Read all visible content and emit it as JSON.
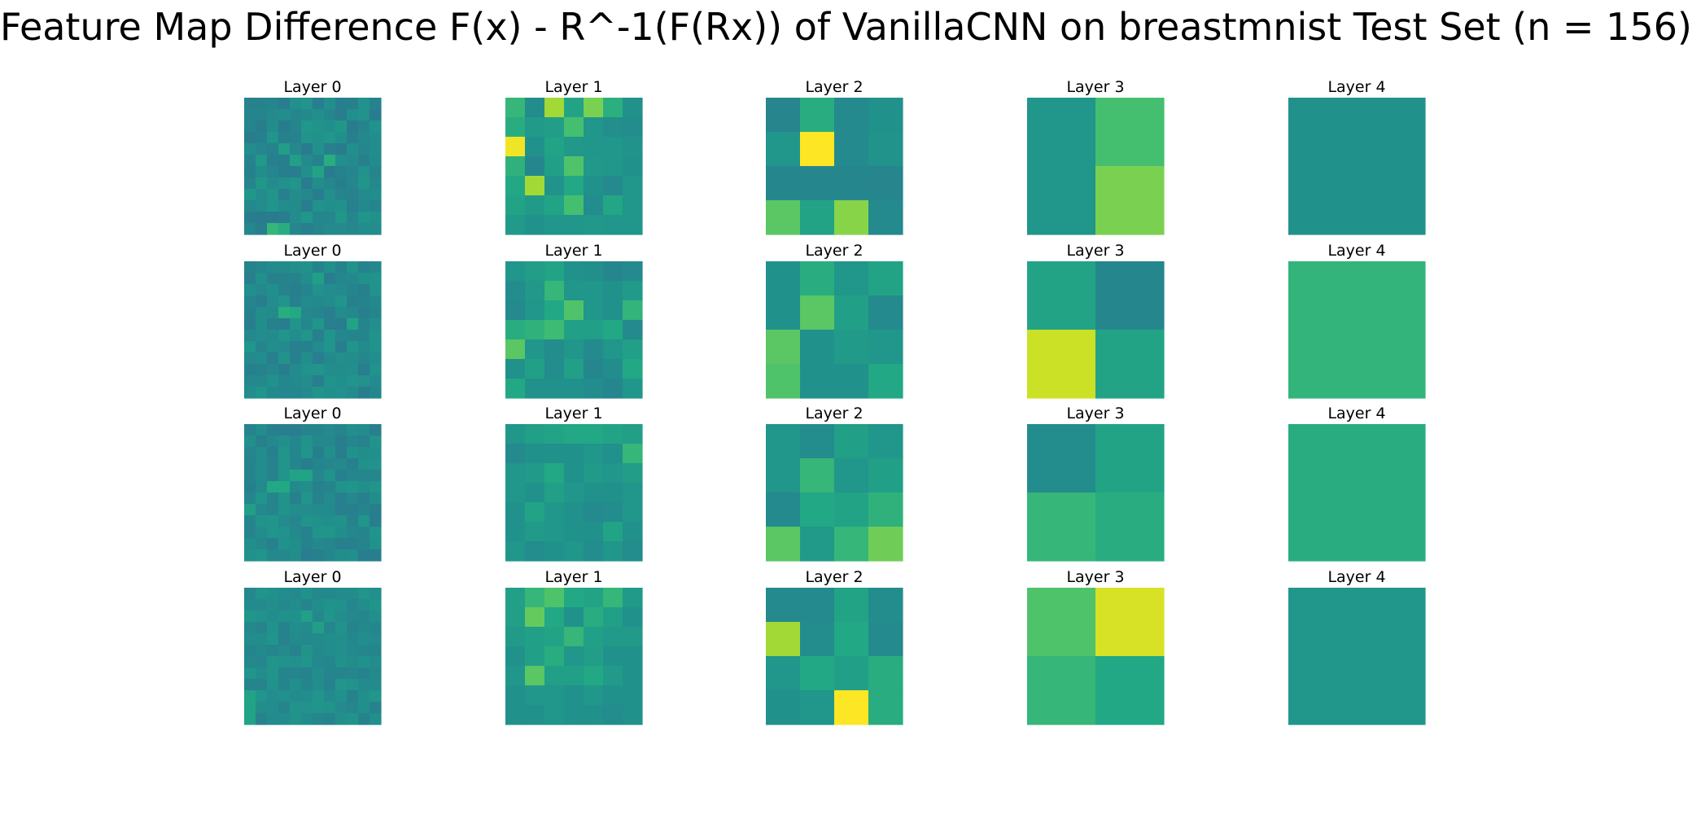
{
  "title": "Feature Map Difference F(x) - R^-1(F(Rx)) of VanillaCNN on breastmnist Test Set (n = 156)",
  "chart_data": {
    "type": "heatmap",
    "title": "Feature Map Difference F(x) - R^-1(F(Rx)) of VanillaCNN on breastmnist Test Set (n = 156)",
    "colormap": "viridis",
    "axes": "off",
    "layout": {
      "rows": 4,
      "cols": 5
    },
    "panels": [
      [
        {
          "title": "Layer 0",
          "size": 12,
          "seed": 11,
          "base": 0.47,
          "amp": 0.06,
          "hot": [
            [
              5,
              7,
              0.62
            ],
            [
              6,
              6,
              0.58
            ],
            [
              11,
              2,
              0.66
            ],
            [
              11,
              3,
              0.62
            ],
            [
              5,
              4,
              0.56
            ],
            [
              4,
              3,
              0.55
            ]
          ]
        },
        {
          "title": "Layer 1",
          "size": 7,
          "values": [
            [
              0.66,
              0.48,
              0.86,
              0.58,
              0.8,
              0.63,
              0.5
            ],
            [
              0.62,
              0.54,
              0.55,
              0.7,
              0.52,
              0.49,
              0.48
            ],
            [
              0.98,
              0.5,
              0.58,
              0.53,
              0.52,
              0.52,
              0.51
            ],
            [
              0.64,
              0.46,
              0.56,
              0.72,
              0.53,
              0.52,
              0.5
            ],
            [
              0.6,
              0.86,
              0.51,
              0.6,
              0.5,
              0.47,
              0.52
            ],
            [
              0.58,
              0.54,
              0.58,
              0.7,
              0.48,
              0.59,
              0.52
            ],
            [
              0.54,
              0.5,
              0.52,
              0.52,
              0.53,
              0.52,
              0.52
            ]
          ]
        },
        {
          "title": "Layer 2",
          "size": 4,
          "values": [
            [
              0.45,
              0.62,
              0.47,
              0.5
            ],
            [
              0.52,
              1.0,
              0.47,
              0.51
            ],
            [
              0.46,
              0.46,
              0.46,
              0.45
            ],
            [
              0.74,
              0.58,
              0.82,
              0.47
            ]
          ]
        },
        {
          "title": "Layer 3",
          "size": 2,
          "values": [
            [
              0.52,
              0.7
            ],
            [
              0.52,
              0.8
            ]
          ]
        },
        {
          "title": "Layer 4",
          "size": 1,
          "values": [
            [
              0.5
            ]
          ]
        }
      ],
      [
        {
          "title": "Layer 0",
          "size": 12,
          "seed": 23,
          "base": 0.47,
          "amp": 0.05,
          "hot": [
            [
              4,
              3,
              0.62
            ],
            [
              4,
              4,
              0.6
            ],
            [
              5,
              9,
              0.58
            ],
            [
              1,
              6,
              0.56
            ]
          ]
        },
        {
          "title": "Layer 1",
          "size": 7,
          "values": [
            [
              0.52,
              0.55,
              0.58,
              0.5,
              0.49,
              0.46,
              0.47
            ],
            [
              0.48,
              0.53,
              0.66,
              0.52,
              0.52,
              0.5,
              0.54
            ],
            [
              0.47,
              0.52,
              0.6,
              0.72,
              0.52,
              0.5,
              0.65
            ],
            [
              0.62,
              0.64,
              0.68,
              0.56,
              0.56,
              0.6,
              0.47
            ],
            [
              0.74,
              0.52,
              0.48,
              0.52,
              0.47,
              0.52,
              0.56
            ],
            [
              0.5,
              0.56,
              0.48,
              0.56,
              0.46,
              0.48,
              0.6
            ],
            [
              0.6,
              0.5,
              0.5,
              0.5,
              0.48,
              0.46,
              0.52
            ]
          ]
        },
        {
          "title": "Layer 2",
          "size": 4,
          "values": [
            [
              0.5,
              0.62,
              0.52,
              0.58
            ],
            [
              0.5,
              0.74,
              0.56,
              0.47
            ],
            [
              0.74,
              0.5,
              0.54,
              0.52
            ],
            [
              0.72,
              0.5,
              0.5,
              0.6
            ]
          ]
        },
        {
          "title": "Layer 3",
          "size": 2,
          "values": [
            [
              0.58,
              0.46
            ],
            [
              0.92,
              0.58
            ]
          ]
        },
        {
          "title": "Layer 4",
          "size": 1,
          "values": [
            [
              0.65
            ]
          ]
        }
      ],
      [
        {
          "title": "Layer 0",
          "size": 12,
          "seed": 37,
          "base": 0.47,
          "amp": 0.05,
          "hot": [
            [
              5,
              2,
              0.6
            ],
            [
              5,
              3,
              0.6
            ],
            [
              4,
              4,
              0.58
            ],
            [
              4,
              5,
              0.58
            ],
            [
              7,
              0,
              0.56
            ]
          ]
        },
        {
          "title": "Layer 1",
          "size": 7,
          "values": [
            [
              0.52,
              0.56,
              0.58,
              0.6,
              0.6,
              0.58,
              0.56
            ],
            [
              0.47,
              0.5,
              0.5,
              0.5,
              0.52,
              0.5,
              0.66
            ],
            [
              0.52,
              0.54,
              0.6,
              0.5,
              0.54,
              0.52,
              0.55
            ],
            [
              0.52,
              0.5,
              0.56,
              0.52,
              0.5,
              0.5,
              0.52
            ],
            [
              0.5,
              0.58,
              0.52,
              0.5,
              0.47,
              0.48,
              0.52
            ],
            [
              0.5,
              0.54,
              0.52,
              0.5,
              0.5,
              0.58,
              0.5
            ],
            [
              0.52,
              0.48,
              0.5,
              0.52,
              0.48,
              0.52,
              0.48
            ]
          ]
        },
        {
          "title": "Layer 2",
          "size": 4,
          "values": [
            [
              0.52,
              0.48,
              0.56,
              0.52
            ],
            [
              0.52,
              0.66,
              0.52,
              0.56
            ],
            [
              0.47,
              0.6,
              0.58,
              0.64
            ],
            [
              0.74,
              0.54,
              0.66,
              0.78
            ]
          ]
        },
        {
          "title": "Layer 3",
          "size": 2,
          "values": [
            [
              0.48,
              0.58
            ],
            [
              0.66,
              0.62
            ]
          ]
        },
        {
          "title": "Layer 4",
          "size": 1,
          "values": [
            [
              0.62
            ]
          ]
        }
      ],
      [
        {
          "title": "Layer 0",
          "size": 12,
          "seed": 51,
          "base": 0.48,
          "amp": 0.04,
          "hot": [
            [
              2,
              5,
              0.56
            ],
            [
              3,
              6,
              0.56
            ],
            [
              9,
              0,
              0.58
            ],
            [
              10,
              0,
              0.58
            ],
            [
              11,
              0,
              0.58
            ]
          ]
        },
        {
          "title": "Layer 1",
          "size": 7,
          "values": [
            [
              0.56,
              0.66,
              0.72,
              0.6,
              0.58,
              0.66,
              0.54
            ],
            [
              0.56,
              0.76,
              0.6,
              0.5,
              0.62,
              0.56,
              0.5
            ],
            [
              0.54,
              0.56,
              0.58,
              0.66,
              0.56,
              0.54,
              0.54
            ],
            [
              0.5,
              0.56,
              0.62,
              0.52,
              0.55,
              0.5,
              0.5
            ],
            [
              0.52,
              0.74,
              0.56,
              0.56,
              0.6,
              0.54,
              0.5
            ],
            [
              0.5,
              0.52,
              0.52,
              0.5,
              0.52,
              0.5,
              0.5
            ],
            [
              0.5,
              0.5,
              0.52,
              0.5,
              0.5,
              0.48,
              0.5
            ]
          ]
        },
        {
          "title": "Layer 2",
          "size": 4,
          "values": [
            [
              0.47,
              0.47,
              0.58,
              0.48
            ],
            [
              0.86,
              0.48,
              0.6,
              0.47
            ],
            [
              0.52,
              0.6,
              0.56,
              0.62
            ],
            [
              0.5,
              0.52,
              1.0,
              0.62
            ]
          ]
        },
        {
          "title": "Layer 3",
          "size": 2,
          "values": [
            [
              0.72,
              0.94
            ],
            [
              0.66,
              0.6
            ]
          ]
        },
        {
          "title": "Layer 4",
          "size": 1,
          "values": [
            [
              0.52
            ]
          ]
        }
      ]
    ]
  }
}
